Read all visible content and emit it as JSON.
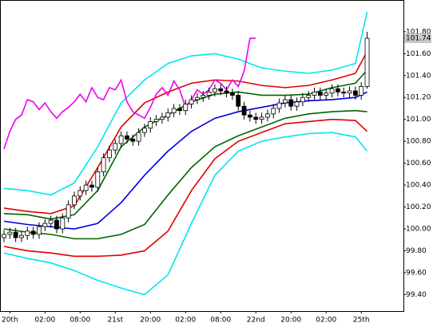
{
  "chart_data": {
    "type": "candlestick",
    "xlim": [
      -0.68,
      68.2
    ],
    "ylim": [
      99.25,
      102.09
    ],
    "xticks": [
      {
        "value": 1,
        "label": "20th"
      },
      {
        "value": 7,
        "label": "02:00"
      },
      {
        "value": 13,
        "label": "08:00"
      },
      {
        "value": 19,
        "label": "21st"
      },
      {
        "value": 25,
        "label": "20:00"
      },
      {
        "value": 31,
        "label": "02:00"
      },
      {
        "value": 37,
        "label": "08:00"
      },
      {
        "value": 43,
        "label": "22nd"
      },
      {
        "value": 49,
        "label": "20:00"
      },
      {
        "value": 55,
        "label": "02:00"
      },
      {
        "value": 61,
        "label": "25th"
      }
    ],
    "yticks": [
      {
        "value": 99.4,
        "label": "99.40"
      },
      {
        "value": 99.6,
        "label": "99.60"
      },
      {
        "value": 99.8,
        "label": "99.80"
      },
      {
        "value": 100,
        "label": "100.00"
      },
      {
        "value": 100.2,
        "label": "100.20"
      },
      {
        "value": 100.4,
        "label": "100.40"
      },
      {
        "value": 100.6,
        "label": "100.60"
      },
      {
        "value": 100.8,
        "label": "100.80"
      },
      {
        "value": 101,
        "label": "101.00"
      },
      {
        "value": 101.2,
        "label": "101.20"
      },
      {
        "value": 101.4,
        "label": "101.40"
      },
      {
        "value": 101.6,
        "label": "101.60"
      },
      {
        "value": 101.8,
        "label": "101.80"
      }
    ],
    "current_price": {
      "value": 101.74,
      "label": "101.74"
    },
    "ohlc": {
      "x": [
        0,
        1,
        2,
        3,
        4,
        5,
        6,
        7,
        8,
        9,
        10,
        11,
        12,
        13,
        14,
        15,
        16,
        17,
        18,
        19,
        20,
        21,
        22,
        23,
        24,
        25,
        26,
        27,
        28,
        29,
        30,
        31,
        32,
        33,
        34,
        35,
        36,
        37,
        38,
        39,
        40,
        41,
        42,
        43,
        44,
        45,
        46,
        47,
        48,
        49,
        50,
        51,
        52,
        53,
        54,
        55,
        56,
        57,
        58,
        59,
        60,
        61,
        62
      ],
      "open": [
        99.92,
        99.95,
        99.97,
        99.92,
        99.94,
        99.98,
        99.95,
        100.02,
        100.05,
        100.08,
        100.0,
        100.1,
        100.22,
        100.3,
        100.35,
        100.4,
        100.38,
        100.52,
        100.65,
        100.72,
        100.78,
        100.85,
        100.82,
        100.8,
        100.88,
        100.92,
        100.98,
        101.0,
        101.02,
        101.06,
        101.1,
        101.08,
        101.14,
        101.18,
        101.2,
        101.22,
        101.25,
        101.28,
        101.26,
        101.24,
        101.22,
        101.12,
        101.04,
        101.02,
        101.0,
        101.02,
        101.05,
        101.1,
        101.15,
        101.18,
        101.12,
        101.16,
        101.2,
        101.22,
        101.25,
        101.22,
        101.24,
        101.28,
        101.25,
        101.24,
        101.26,
        101.22,
        101.3
      ],
      "high": [
        99.99,
        100.01,
        100.01,
        99.98,
        100.02,
        100.02,
        100.06,
        100.09,
        100.12,
        100.12,
        100.14,
        100.26,
        100.34,
        100.39,
        100.44,
        100.44,
        100.56,
        100.69,
        100.76,
        100.82,
        100.89,
        100.89,
        100.86,
        100.92,
        100.96,
        101.02,
        101.04,
        101.06,
        101.1,
        101.14,
        101.14,
        101.18,
        101.22,
        101.24,
        101.26,
        101.29,
        101.32,
        101.32,
        101.3,
        101.28,
        101.26,
        101.16,
        101.08,
        101.06,
        101.06,
        101.09,
        101.14,
        101.19,
        101.22,
        101.22,
        101.2,
        101.24,
        101.26,
        101.29,
        101.29,
        101.28,
        101.32,
        101.32,
        101.29,
        101.3,
        101.3,
        101.34,
        101.8
      ],
      "low": [
        99.88,
        99.91,
        99.88,
        99.88,
        99.9,
        99.91,
        99.91,
        99.98,
        100.01,
        99.96,
        99.96,
        100.06,
        100.18,
        100.26,
        100.31,
        100.34,
        100.34,
        100.48,
        100.61,
        100.68,
        100.74,
        100.78,
        100.76,
        100.76,
        100.84,
        100.88,
        100.94,
        100.96,
        100.98,
        101.02,
        101.04,
        101.04,
        101.1,
        101.14,
        101.16,
        101.18,
        101.21,
        101.22,
        101.2,
        101.18,
        101.08,
        101.0,
        100.98,
        100.96,
        100.96,
        100.98,
        101.01,
        101.06,
        101.11,
        101.08,
        101.08,
        101.12,
        101.16,
        101.18,
        101.18,
        101.18,
        101.2,
        101.21,
        101.2,
        101.2,
        101.18,
        101.18,
        101.28
      ],
      "close": [
        99.95,
        99.97,
        99.92,
        99.94,
        99.98,
        99.95,
        100.02,
        100.05,
        100.08,
        100.0,
        100.1,
        100.22,
        100.3,
        100.35,
        100.4,
        100.38,
        100.52,
        100.65,
        100.72,
        100.78,
        100.85,
        100.82,
        100.8,
        100.88,
        100.92,
        100.98,
        101.0,
        101.02,
        101.06,
        101.1,
        101.08,
        101.14,
        101.18,
        101.2,
        101.22,
        101.25,
        101.28,
        101.26,
        101.24,
        101.22,
        101.12,
        101.04,
        101.02,
        101.0,
        101.02,
        101.05,
        101.1,
        101.15,
        101.18,
        101.12,
        101.16,
        101.2,
        101.22,
        101.25,
        101.22,
        101.24,
        101.28,
        101.25,
        101.24,
        101.26,
        101.22,
        101.3,
        101.74
      ],
      "up_color": "#ffffff",
      "down_color": "#000000",
      "edge_color": "#000000"
    },
    "series": [
      {
        "color": "#00e5ee",
        "x": [
          0,
          4,
          8,
          12,
          16,
          20,
          24,
          28,
          32,
          36,
          40,
          44,
          48,
          52,
          56,
          60,
          62
        ],
        "values": [
          100.37,
          100.35,
          100.31,
          100.42,
          100.75,
          101.15,
          101.36,
          101.51,
          101.58,
          101.6,
          101.55,
          101.47,
          101.44,
          101.42,
          101.45,
          101.51,
          101.98
        ]
      },
      {
        "color": "#e00000",
        "x": [
          0,
          4,
          8,
          12,
          16,
          20,
          24,
          28,
          32,
          36,
          40,
          44,
          48,
          52,
          56,
          60,
          62
        ],
        "values": [
          100.19,
          100.16,
          100.14,
          100.21,
          100.56,
          100.93,
          101.15,
          101.25,
          101.33,
          101.36,
          101.35,
          101.31,
          101.29,
          101.31,
          101.36,
          101.42,
          101.62
        ]
      },
      {
        "color": "#006400",
        "x": [
          0,
          4,
          8,
          12,
          16,
          20,
          24,
          28,
          32,
          36,
          40,
          44,
          48,
          52,
          56,
          60,
          62
        ],
        "values": [
          100.14,
          100.13,
          100.09,
          100.13,
          100.35,
          100.75,
          100.93,
          101.04,
          101.16,
          101.23,
          101.25,
          101.22,
          101.22,
          101.23,
          101.29,
          101.33,
          101.45
        ]
      },
      {
        "color": "#0000e0",
        "x": [
          0,
          4,
          8,
          12,
          16,
          20,
          24,
          28,
          32,
          36,
          40,
          44,
          48,
          52,
          56,
          60,
          62
        ],
        "values": [
          100.07,
          100.04,
          100.02,
          100.0,
          100.05,
          100.24,
          100.49,
          100.71,
          100.89,
          101.01,
          101.07,
          101.11,
          101.15,
          101.17,
          101.18,
          101.2,
          101.25
        ]
      },
      {
        "color": "#006400",
        "x": [
          0,
          4,
          8,
          12,
          16,
          20,
          24,
          28,
          32,
          36,
          40,
          44,
          48,
          52,
          56,
          60,
          62
        ],
        "values": [
          100.0,
          99.97,
          99.95,
          99.91,
          99.91,
          99.95,
          100.04,
          100.31,
          100.56,
          100.75,
          100.85,
          100.93,
          101.01,
          101.05,
          101.07,
          101.08,
          101.07
        ]
      },
      {
        "color": "#e00000",
        "x": [
          0,
          4,
          8,
          12,
          16,
          20,
          24,
          28,
          32,
          36,
          40,
          44,
          48,
          52,
          56,
          60,
          62
        ],
        "values": [
          99.84,
          99.8,
          99.78,
          99.75,
          99.75,
          99.76,
          99.8,
          99.98,
          100.35,
          100.64,
          100.8,
          100.88,
          100.96,
          100.98,
          101.0,
          100.99,
          100.89
        ]
      },
      {
        "color": "#00e5ee",
        "x": [
          0,
          4,
          8,
          12,
          16,
          20,
          24,
          28,
          32,
          36,
          40,
          44,
          48,
          52,
          56,
          60,
          62
        ],
        "values": [
          99.78,
          99.73,
          99.69,
          99.62,
          99.53,
          99.46,
          99.4,
          99.58,
          100.05,
          100.49,
          100.71,
          100.8,
          100.84,
          100.87,
          100.88,
          100.84,
          100.71
        ]
      },
      {
        "color": "#ee00ee",
        "x": [
          0,
          1,
          2,
          3,
          4,
          5,
          6,
          7,
          8,
          9,
          10,
          11,
          12,
          13,
          14,
          15,
          16,
          17,
          18,
          19,
          20,
          21,
          22,
          23,
          24,
          25,
          26,
          27,
          28,
          29,
          30,
          31,
          32,
          33,
          34,
          35,
          36,
          37,
          38,
          39,
          40,
          41,
          42,
          43
        ],
        "values": [
          100.73,
          100.89,
          101.0,
          101.04,
          101.18,
          101.16,
          101.09,
          101.15,
          101.07,
          101.01,
          101.07,
          101.11,
          101.16,
          101.23,
          101.16,
          101.29,
          101.2,
          101.18,
          101.29,
          101.27,
          101.36,
          101.16,
          101.07,
          101.04,
          101.01,
          101.11,
          101.23,
          101.29,
          101.22,
          101.35,
          101.27,
          101.11,
          101.18,
          101.27,
          101.23,
          101.27,
          101.36,
          101.33,
          101.27,
          101.36,
          101.3,
          101.44,
          101.74,
          101.74
        ]
      }
    ]
  }
}
